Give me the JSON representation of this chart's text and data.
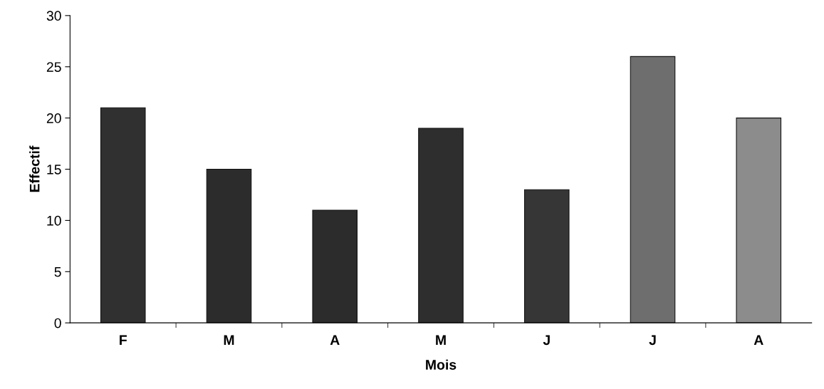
{
  "chart_data": {
    "type": "bar",
    "xlabel": "Mois",
    "ylabel": "Effectif",
    "categories": [
      "F",
      "M",
      "A",
      "M",
      "J",
      "J",
      "A"
    ],
    "values": [
      21,
      15,
      11,
      19,
      13,
      26,
      20
    ],
    "colors": [
      "#303030",
      "#2c2c2c",
      "#2c2c2c",
      "#2e2e2e",
      "#363636",
      "#6e6e6e",
      "#8c8c8c"
    ],
    "ylim": [
      0,
      30
    ],
    "yticks": [
      0,
      5,
      10,
      15,
      20,
      25,
      30
    ],
    "grid": false,
    "legend": false
  }
}
